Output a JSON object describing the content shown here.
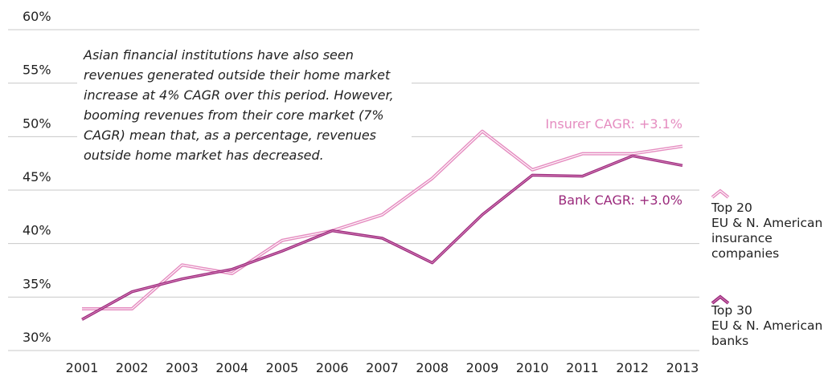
{
  "chart_data": {
    "type": "line",
    "categories": [
      "2001",
      "2002",
      "2003",
      "2004",
      "2005",
      "2006",
      "2007",
      "2008",
      "2009",
      "2010",
      "2011",
      "2012",
      "2013"
    ],
    "series": [
      {
        "name": "Top 20\nEU & N. American\ninsurance\ncompanies",
        "color": "#e58cc0",
        "values": [
          33.9,
          33.9,
          38.0,
          37.2,
          40.3,
          41.2,
          42.7,
          46.1,
          50.5,
          46.9,
          48.4,
          48.4,
          49.1
        ]
      },
      {
        "name": "Top 30\nEU & N. American\nbanks",
        "color": "#9b2a7c",
        "values": [
          32.9,
          35.5,
          36.7,
          37.6,
          39.3,
          41.2,
          40.5,
          38.2,
          42.7,
          46.4,
          46.3,
          48.2,
          47.3
        ]
      }
    ],
    "ylim": [
      30,
      60
    ],
    "yticks": [
      {
        "value": 30,
        "label": "30%"
      },
      {
        "value": 35,
        "label": "35%"
      },
      {
        "value": 40,
        "label": "40%"
      },
      {
        "value": 45,
        "label": "45%"
      },
      {
        "value": 50,
        "label": "50%"
      },
      {
        "value": 55,
        "label": "55%"
      },
      {
        "value": 60,
        "label": "60%"
      }
    ],
    "grid": true,
    "annotations": [
      "Asian financial institutions have also seen revenues generated outside their home market increase at 4% CAGR over this period. However, booming revenues from their core market (7% CAGR) mean that, as a percentage, revenues outside home market has decreased.",
      "Insurer CAGR: +3.1%",
      "Bank CAGR: +3.0%"
    ]
  }
}
